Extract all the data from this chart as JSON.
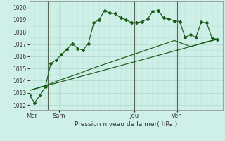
{
  "background_color": "#cff0e8",
  "plot_bg_color": "#cff0e8",
  "grid_color": "#b0d8cc",
  "vline_color": "#556655",
  "line_color": "#1a5c1a",
  "ylabel_ticks": [
    1012,
    1013,
    1014,
    1015,
    1016,
    1017,
    1018,
    1019,
    1020
  ],
  "ylim": [
    1011.6,
    1020.5
  ],
  "xlabel": "Pression niveau de la mer( hPa )",
  "day_labels": [
    "Mer",
    "Sam",
    "Jeu",
    "Ven"
  ],
  "day_positions": [
    0.5,
    5.5,
    19.5,
    27.5
  ],
  "vline_positions": [
    3.5,
    19.5,
    27.5
  ],
  "xlim": [
    0,
    36
  ],
  "series1_x": [
    0,
    1,
    2,
    3,
    4,
    5,
    6,
    7,
    8,
    9,
    10,
    11,
    12,
    13,
    14,
    15,
    16,
    17,
    18,
    19,
    20,
    21,
    22,
    23,
    24,
    25,
    26,
    27,
    28,
    29,
    30,
    31,
    32,
    33,
    34,
    35
  ],
  "series1_y": [
    1012.8,
    1012.2,
    1012.8,
    1013.5,
    1015.4,
    1015.7,
    1016.15,
    1016.55,
    1017.05,
    1016.65,
    1016.5,
    1017.05,
    1018.75,
    1019.0,
    1019.75,
    1019.55,
    1019.5,
    1019.15,
    1019.0,
    1018.75,
    1018.75,
    1018.85,
    1019.05,
    1019.7,
    1019.75,
    1019.15,
    1019.05,
    1018.9,
    1018.85,
    1017.55,
    1017.8,
    1017.55,
    1018.8,
    1018.75,
    1017.5,
    1017.4
  ],
  "series2_x": [
    0,
    3,
    6,
    9,
    12,
    15,
    18,
    21,
    24,
    27,
    30,
    33,
    35
  ],
  "series2_y": [
    1013.2,
    1013.6,
    1014.1,
    1014.55,
    1015.05,
    1015.5,
    1015.95,
    1016.4,
    1016.85,
    1017.3,
    1016.8,
    1017.2,
    1017.4
  ],
  "series3_x": [
    0,
    35
  ],
  "series3_y": [
    1013.2,
    1017.4
  ],
  "marker_style": "D",
  "marker_size": 2.0
}
